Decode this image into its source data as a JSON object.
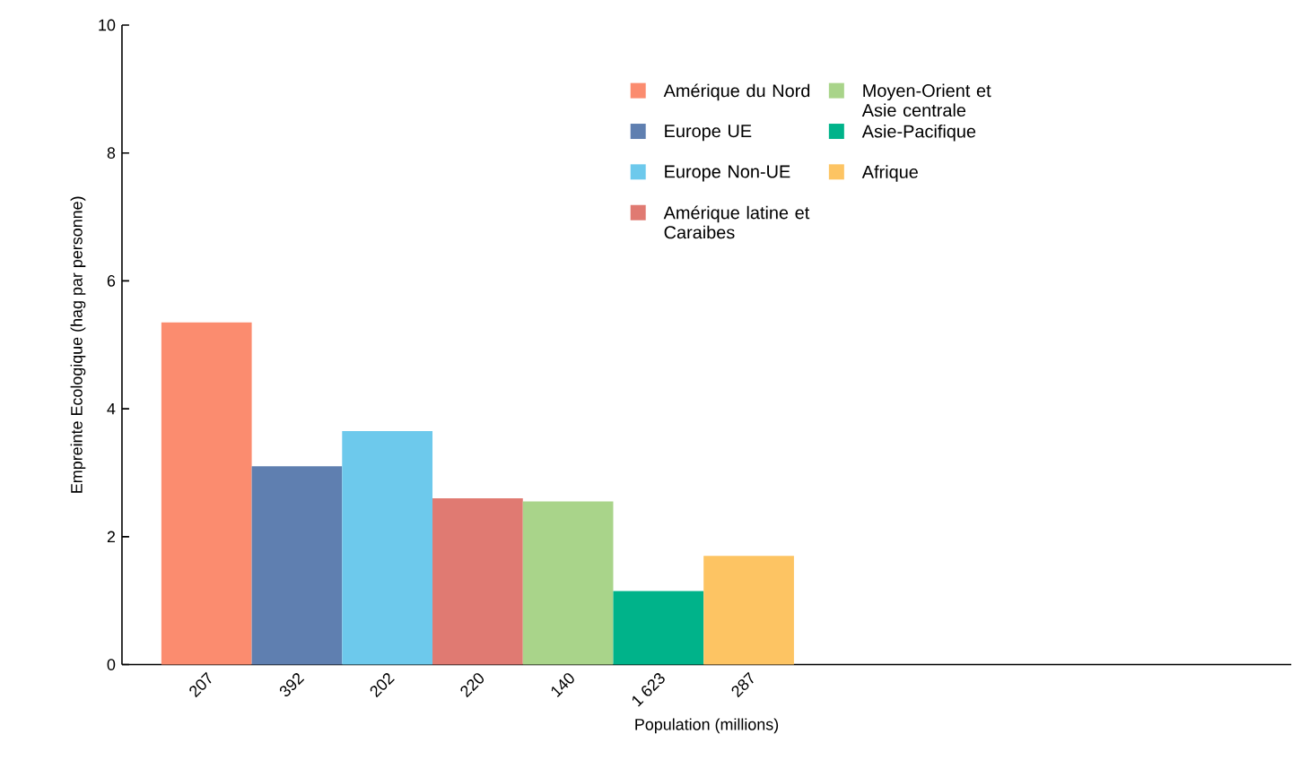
{
  "chart_data": {
    "type": "bar",
    "xlabel": "Population (millions)",
    "ylabel": "Empreinte Ecologique (hag par personne)",
    "categories": [
      "207",
      "392",
      "202",
      "220",
      "140",
      "1 623",
      "287"
    ],
    "series": [
      {
        "name": "Amérique du Nord",
        "color": "#fb8c6f",
        "values": [
          5.35,
          null,
          null,
          null,
          null,
          null,
          null
        ]
      },
      {
        "name": "Europe UE",
        "color": "#5f7fb0",
        "values": [
          null,
          3.1,
          null,
          null,
          null,
          null,
          null
        ]
      },
      {
        "name": "Europe Non-UE",
        "color": "#6dc9ec",
        "values": [
          null,
          null,
          3.65,
          null,
          null,
          null,
          null
        ]
      },
      {
        "name": "Amérique latine et Caraibes",
        "color": "#e07a72",
        "values": [
          null,
          null,
          null,
          2.6,
          null,
          null,
          null
        ]
      },
      {
        "name": "Moyen-Orient et Asie centrale",
        "color": "#a9d48a",
        "values": [
          null,
          null,
          null,
          null,
          2.55,
          null,
          null
        ]
      },
      {
        "name": "Asie-Pacifique",
        "color": "#00b38a",
        "values": [
          null,
          null,
          null,
          null,
          null,
          1.15,
          null
        ]
      },
      {
        "name": "Afrique",
        "color": "#fdc463",
        "values": [
          null,
          null,
          null,
          null,
          null,
          null,
          1.7
        ]
      }
    ],
    "ylim": [
      0,
      10
    ],
    "yticks": [
      0,
      2,
      4,
      6,
      8,
      10
    ],
    "grid": false,
    "legend": "top"
  }
}
